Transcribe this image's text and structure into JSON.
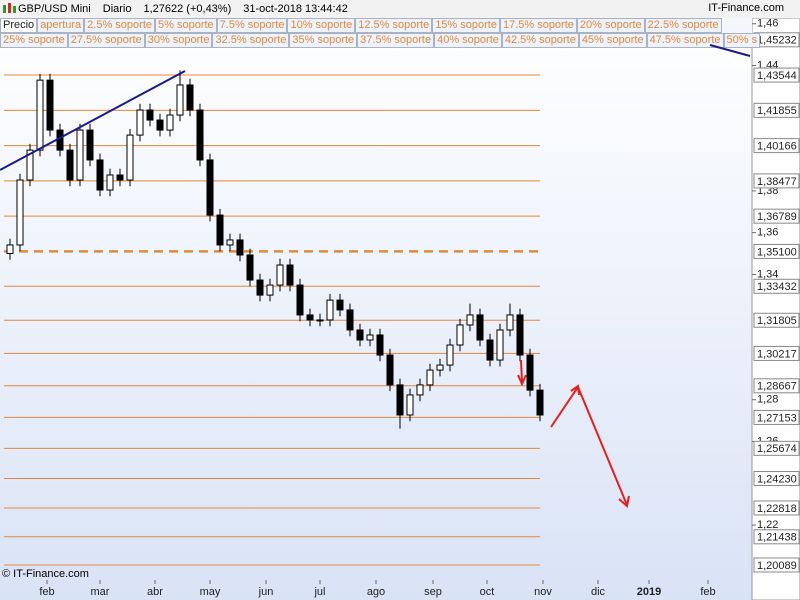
{
  "header": {
    "symbol": "GBP/USD Mini",
    "period": "Diario",
    "price": "1,27622 (+0,43%)",
    "timestamp": "31-oct-2018 13:44:42",
    "brand": "IT-Finance.com"
  },
  "buttons_row1": [
    "Precio",
    "apertura",
    "2.5% soporte",
    "5% soporte",
    "7.5% soporte",
    "10% soporte",
    "12.5% soporte",
    "15% soporte",
    "17.5% soporte",
    "20% soporte",
    "22.5% soporte"
  ],
  "buttons_row2": [
    "25% soporte",
    "27.5% soporte",
    "30% soporte",
    "32.5% soporte",
    "35% soporte",
    "37.5% soporte",
    "40% soporte",
    "42.5% soporte",
    "45% soporte",
    "47.5% soporte",
    "50% s"
  ],
  "footer": "© IT-Finance.com",
  "chart_data": {
    "type": "candlestick",
    "open": [
      1.35,
      1.3541,
      1.3852,
      1.3995,
      1.433,
      1.4091,
      1.3995,
      1.3852,
      1.4091,
      1.3948,
      1.3804,
      1.3876,
      1.3852,
      1.4067,
      1.4187,
      1.4139,
      1.4091,
      1.4163,
      1.4307,
      1.4187,
      1.3948,
      1.3684,
      1.3541,
      1.3565,
      1.3493,
      1.3373,
      1.3301,
      1.3349,
      1.3445,
      1.3349,
      1.3206,
      1.3182,
      1.3182,
      1.3277,
      1.323,
      1.3134,
      1.3086,
      1.311,
      1.3014,
      1.2871,
      1.2727,
      1.2823,
      1.2871,
      1.2942,
      1.2966,
      1.3062,
      1.3158,
      1.3206,
      1.3086,
      1.299,
      1.3134,
      1.3206,
      1.3014,
      1.2846
    ],
    "high": [
      1.3571,
      1.3882,
      1.4025,
      1.436,
      1.436,
      1.4121,
      1.4025,
      1.4121,
      1.4121,
      1.3978,
      1.3906,
      1.3906,
      1.4097,
      1.4217,
      1.4217,
      1.4169,
      1.4193,
      1.4377,
      1.4337,
      1.4217,
      1.3978,
      1.3714,
      1.3595,
      1.3595,
      1.3523,
      1.3403,
      1.3379,
      1.3475,
      1.3475,
      1.3379,
      1.3236,
      1.3212,
      1.3307,
      1.3307,
      1.326,
      1.3164,
      1.314,
      1.314,
      1.3044,
      1.2901,
      1.2853,
      1.2901,
      1.2972,
      1.2996,
      1.3092,
      1.3188,
      1.326,
      1.3236,
      1.3116,
      1.3164,
      1.326,
      1.3236,
      1.3044,
      1.2876
    ],
    "low": [
      1.347,
      1.3511,
      1.3822,
      1.3965,
      1.4061,
      1.3965,
      1.3822,
      1.3822,
      1.3918,
      1.3774,
      1.3774,
      1.3822,
      1.3822,
      1.4037,
      1.4109,
      1.4061,
      1.4061,
      1.4133,
      1.4157,
      1.3918,
      1.3654,
      1.3511,
      1.3511,
      1.3463,
      1.3343,
      1.3271,
      1.3271,
      1.3319,
      1.3319,
      1.3176,
      1.3152,
      1.3152,
      1.3152,
      1.32,
      1.3104,
      1.3056,
      1.3056,
      1.2984,
      1.2841,
      1.2662,
      1.2697,
      1.2793,
      1.2841,
      1.2912,
      1.2936,
      1.3032,
      1.3128,
      1.3056,
      1.296,
      1.296,
      1.3104,
      1.2984,
      1.2816,
      1.2697
    ],
    "close": [
      1.3541,
      1.3852,
      1.3995,
      1.433,
      1.4091,
      1.3995,
      1.3852,
      1.4091,
      1.3948,
      1.3804,
      1.3876,
      1.3852,
      1.4067,
      1.4187,
      1.4139,
      1.4091,
      1.4163,
      1.4307,
      1.4187,
      1.3948,
      1.3684,
      1.3541,
      1.3565,
      1.3493,
      1.3373,
      1.3301,
      1.3349,
      1.3445,
      1.3349,
      1.3206,
      1.3182,
      1.3182,
      1.3277,
      1.323,
      1.3134,
      1.3086,
      1.311,
      1.3014,
      1.2871,
      1.2727,
      1.2823,
      1.2871,
      1.2942,
      1.2966,
      1.3062,
      1.3158,
      1.3206,
      1.3086,
      1.299,
      1.3134,
      1.3206,
      1.3014,
      1.2846,
      1.2727
    ],
    "up_color": "#ffffff",
    "down_color": "#000000",
    "ylim": [
      1.1937,
      1.4618
    ],
    "yticks": [
      {
        "value": 1.46,
        "label": "1,46"
      },
      {
        "value": 1.44,
        "label": "1,44"
      },
      {
        "value": 1.38,
        "label": "1,38"
      },
      {
        "value": 1.36,
        "label": "1,36"
      },
      {
        "value": 1.34,
        "label": "1,34"
      },
      {
        "value": 1.28,
        "label": "1,28"
      },
      {
        "value": 1.26,
        "label": "1,26"
      },
      {
        "value": 1.22,
        "label": "1,22"
      }
    ],
    "level_color": "#e08a3c",
    "levels": [
      {
        "value": 1.45232,
        "label": "1,45232",
        "style": "solid"
      },
      {
        "value": 1.43544,
        "label": "1,43544",
        "style": "solid"
      },
      {
        "value": 1.41855,
        "label": "1,41855",
        "style": "solid"
      },
      {
        "value": 1.40166,
        "label": "1,40166",
        "style": "solid"
      },
      {
        "value": 1.38477,
        "label": "1,38477",
        "style": "solid"
      },
      {
        "value": 1.36789,
        "label": "1,36789",
        "style": "solid"
      },
      {
        "value": 1.351,
        "label": "1,35100",
        "style": "dashed"
      },
      {
        "value": 1.33432,
        "label": "1,33432",
        "style": "solid"
      },
      {
        "value": 1.31805,
        "label": "1,31805",
        "style": "solid"
      },
      {
        "value": 1.30217,
        "label": "1,30217",
        "style": "solid"
      },
      {
        "value": 1.28667,
        "label": "1,28667",
        "style": "solid"
      },
      {
        "value": 1.27153,
        "label": "1,27153",
        "style": "solid"
      },
      {
        "value": 1.25674,
        "label": "1,25674",
        "style": "solid"
      },
      {
        "value": 1.2423,
        "label": "1,24230",
        "style": "solid"
      },
      {
        "value": 1.22818,
        "label": "1,22818",
        "style": "solid"
      },
      {
        "value": 1.21438,
        "label": "1,21438",
        "style": "solid"
      },
      {
        "value": 1.20089,
        "label": "1,20089",
        "style": "solid"
      }
    ],
    "x_labels": [
      "feb",
      "mar",
      "abr",
      "may",
      "jun",
      "jul",
      "ago",
      "sep",
      "oct",
      "nov",
      "dic",
      "2019",
      "feb"
    ]
  }
}
